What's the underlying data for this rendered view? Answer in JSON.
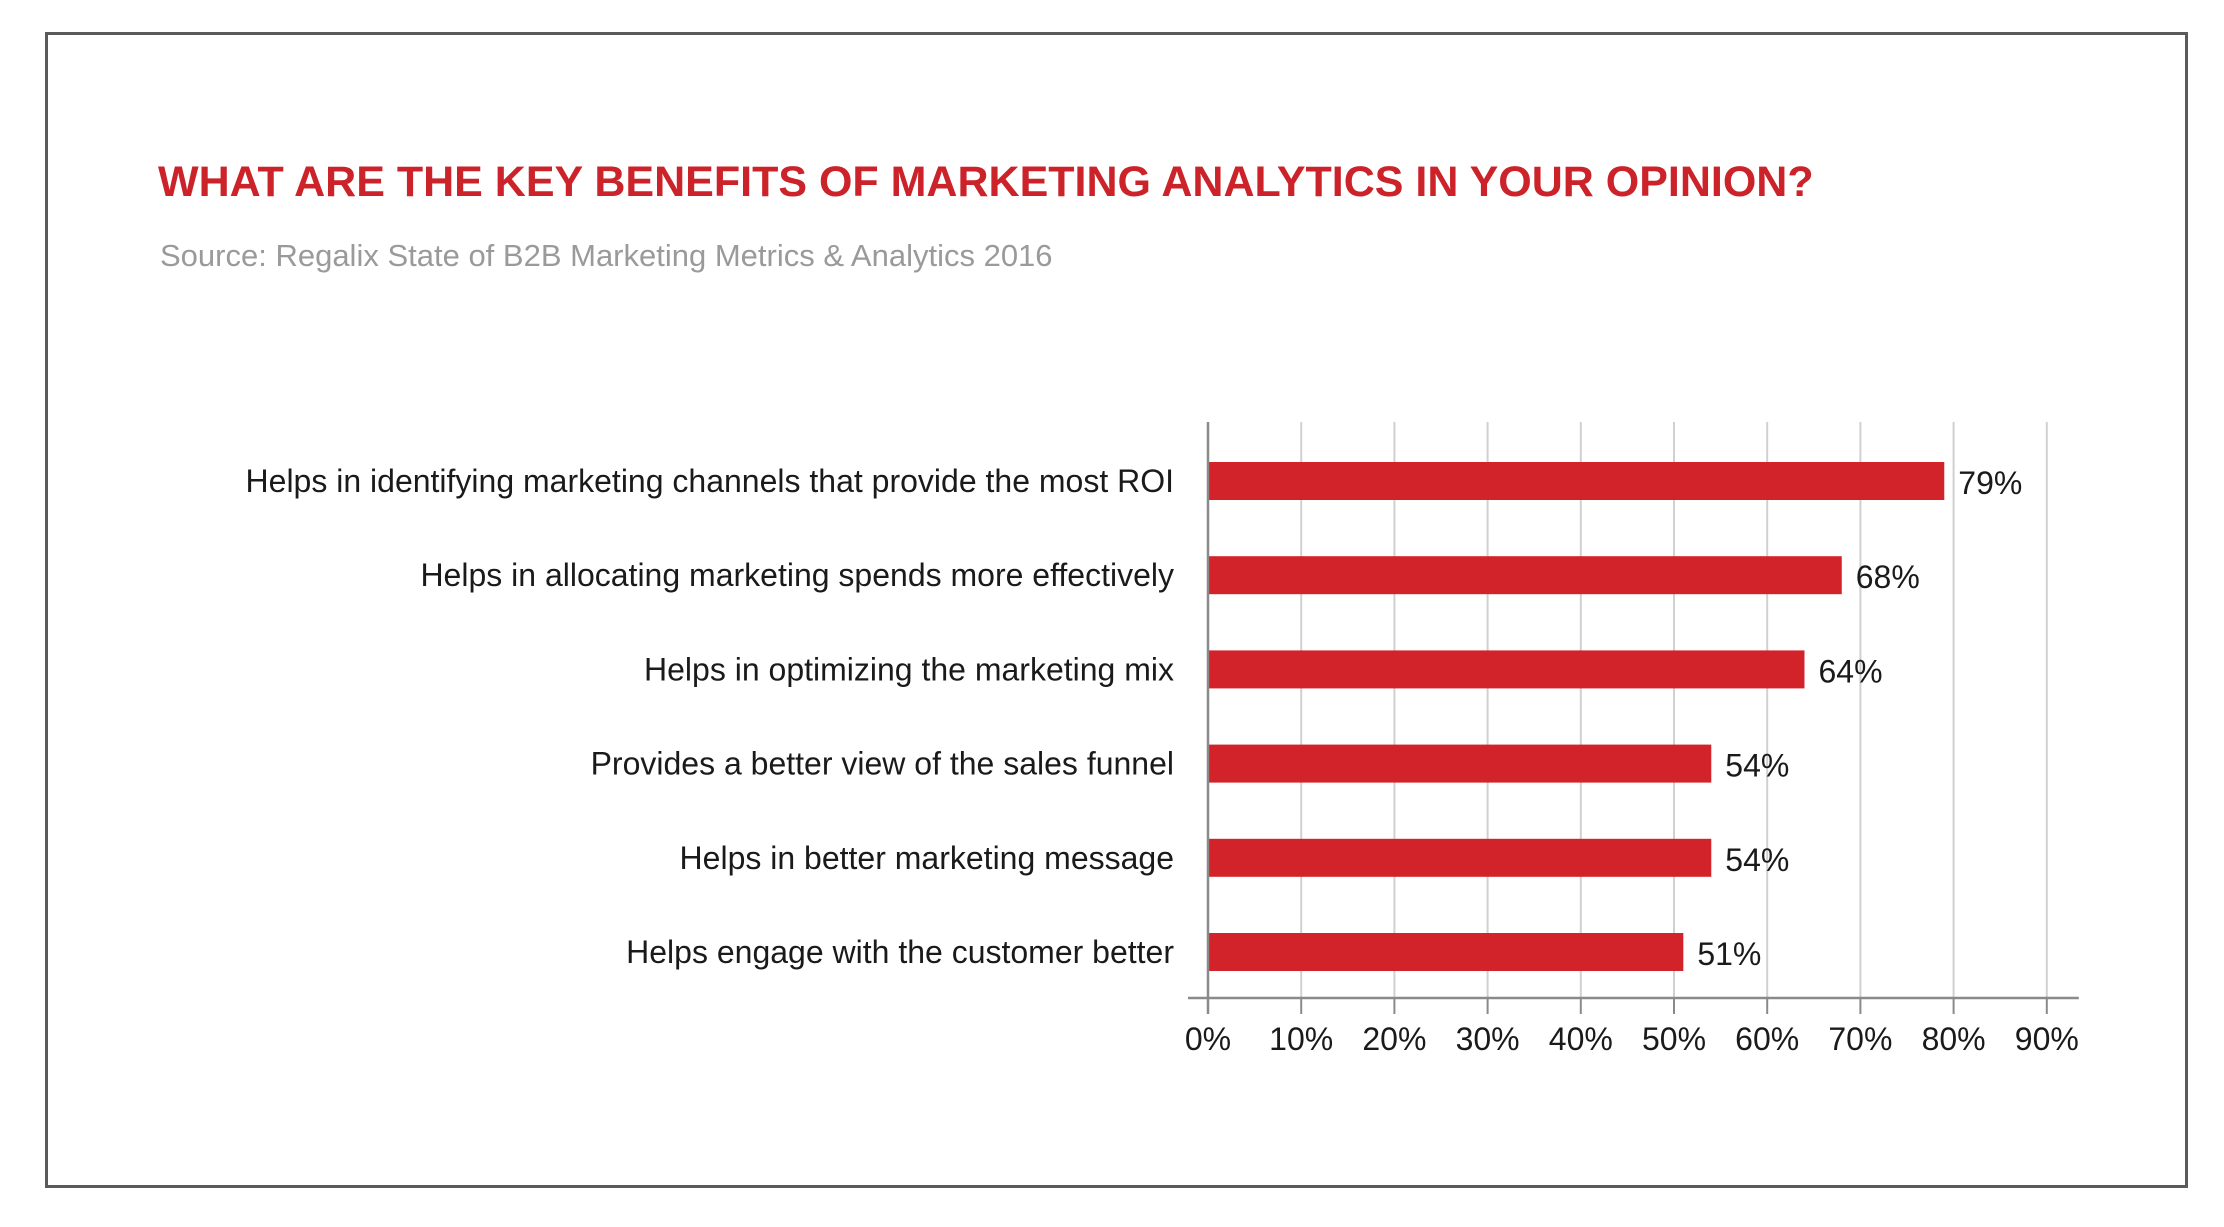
{
  "header": {
    "title": "WHAT ARE THE KEY BENEFITS OF MARKETING ANALYTICS IN YOUR OPINION?",
    "subtitle": "Source: Regalix State of B2B Marketing Metrics & Analytics 2016"
  },
  "colors": {
    "title": "#cc2229",
    "bar": "#d2232a",
    "subtitle": "#9a9a9a",
    "gridline": "#d0d0d0",
    "axis": "#8a8a8a"
  },
  "chart_data": {
    "type": "bar",
    "orientation": "horizontal",
    "title": "WHAT ARE THE KEY BENEFITS OF MARKETING ANALYTICS IN YOUR OPINION?",
    "subtitle": "Source: Regalix State of B2B Marketing Metrics & Analytics 2016",
    "xlabel": "",
    "ylabel": "",
    "categories": [
      "Helps in identifying marketing channels that provide the most ROI",
      "Helps in allocating marketing spends more effectively",
      "Helps in optimizing the marketing mix",
      "Provides a better view of the sales funnel",
      "Helps in better marketing message",
      "Helps engage with the customer better"
    ],
    "values": [
      79,
      68,
      64,
      54,
      54,
      51
    ],
    "value_labels": [
      "79%",
      "68%",
      "64%",
      "54%",
      "54%",
      "51%"
    ],
    "xlim": [
      0,
      90
    ],
    "ticks": [
      0,
      10,
      20,
      30,
      40,
      50,
      60,
      70,
      80,
      90
    ],
    "tick_labels": [
      "0%",
      "10%",
      "20%",
      "30%",
      "40%",
      "50%",
      "60%",
      "70%",
      "80%",
      "90%"
    ],
    "grid": true,
    "legend": "none"
  }
}
